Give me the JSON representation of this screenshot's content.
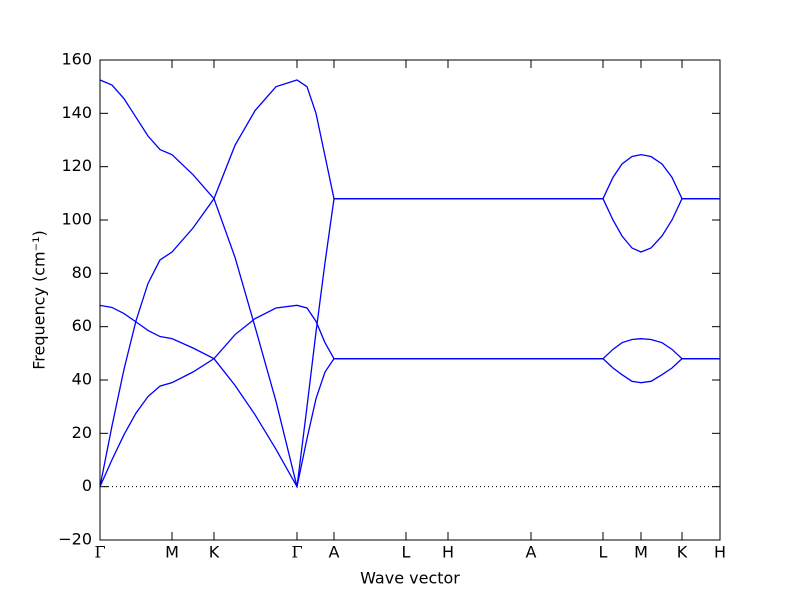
{
  "chart_data": {
    "type": "line",
    "xlabel": "Wave vector",
    "ylabel": "Frequency (cm⁻¹)",
    "xlim": [
      0,
      6.2
    ],
    "ylim": [
      -20,
      160
    ],
    "xticks": [
      {
        "value": 0,
        "label": "Γ"
      },
      {
        "value": 0.72,
        "label": "M"
      },
      {
        "value": 1.14,
        "label": "K"
      },
      {
        "value": 1.97,
        "label": "Γ"
      },
      {
        "value": 2.34,
        "label": "A"
      },
      {
        "value": 3.06,
        "label": "L"
      },
      {
        "value": 3.48,
        "label": "H"
      },
      {
        "value": 4.31,
        "label": "A"
      },
      {
        "value": 5.03,
        "label": "L"
      },
      {
        "value": 5.41,
        "label": "M"
      },
      {
        "value": 5.82,
        "label": "K"
      },
      {
        "value": 6.2,
        "label": "H"
      }
    ],
    "yticks": [
      {
        "value": -20,
        "label": "−20"
      },
      0,
      20,
      40,
      60,
      80,
      100,
      120,
      140,
      160
    ],
    "zero_line": true,
    "x": [
      0,
      0.12,
      0.24,
      0.36,
      0.48,
      0.6,
      0.72,
      0.93,
      1.14,
      1.35,
      1.55,
      1.76,
      1.97,
      2.07,
      2.16,
      2.25,
      2.34,
      3.06,
      3.48,
      4.31,
      5.03,
      5.13,
      5.22,
      5.32,
      5.41,
      5.51,
      5.62,
      5.72,
      5.82,
      6.2
    ],
    "series": [
      {
        "color": "#0000ff",
        "values": [
          152.5,
          150.6,
          145.5,
          138.5,
          131.5,
          126.4,
          124.5,
          117,
          108,
          86,
          60,
          32,
          0,
          30,
          58,
          84,
          108,
          108,
          108,
          108,
          108,
          116,
          121,
          123.8,
          124.5,
          123.8,
          121,
          116,
          108,
          108
        ]
      },
      {
        "color": "#0000ff",
        "values": [
          0,
          22.8,
          44,
          62.2,
          76.2,
          85,
          88,
          97,
          108,
          128,
          141,
          150,
          152.5,
          150,
          140,
          124,
          108,
          108,
          108,
          108,
          108,
          100,
          94,
          89.5,
          88,
          89.5,
          94,
          100,
          108,
          108
        ]
      },
      {
        "color": "#0000ff",
        "values": [
          68,
          67.2,
          64.9,
          61.8,
          58.6,
          56.3,
          55.5,
          52,
          48,
          38,
          27,
          14,
          0,
          18,
          33,
          43,
          48,
          48,
          48,
          48,
          48,
          51.5,
          54,
          55.2,
          55.5,
          55.2,
          54,
          51.5,
          48,
          48
        ]
      },
      {
        "color": "#0000ff",
        "values": [
          0,
          10.1,
          19.5,
          27.6,
          33.8,
          37.7,
          39,
          43,
          48,
          57,
          63,
          67,
          68,
          67,
          62,
          54,
          48,
          48,
          48,
          48,
          48,
          44.5,
          42,
          39.5,
          39,
          39.5,
          42,
          44.5,
          48,
          48
        ]
      }
    ]
  }
}
